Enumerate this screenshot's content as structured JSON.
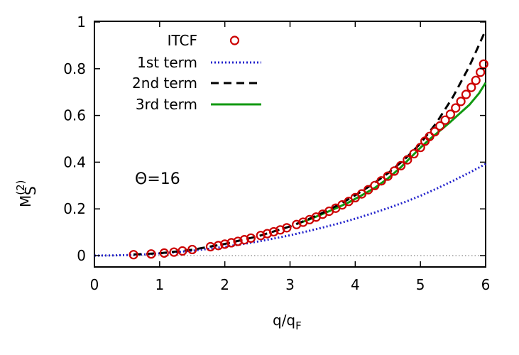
{
  "chart_data": {
    "type": "line",
    "title": "",
    "xlabel": {
      "base": "q/q",
      "sub": "F"
    },
    "ylabel": {
      "base": "M",
      "sup": "(2)",
      "sub": "S"
    },
    "xlim": [
      0,
      6
    ],
    "ylim": [
      -0.05,
      1.0
    ],
    "xticks": [
      0,
      1,
      2,
      3,
      4,
      5,
      6
    ],
    "xtick_labels": [
      "0",
      "1",
      "2",
      "3",
      "4",
      "5",
      "6"
    ],
    "yticks": [
      0,
      0.2,
      0.4,
      0.6,
      0.8,
      1
    ],
    "ytick_labels": [
      "0",
      "0.2",
      "0.4",
      "0.6",
      "0.8",
      "1"
    ],
    "grid": false,
    "legend_position": "top-left",
    "annotation": "Θ=16",
    "reference_line": {
      "y": 0,
      "style": "dotted",
      "color": "#888888"
    },
    "series": [
      {
        "name": "ITCF",
        "style": "circles",
        "color": "#cc0000",
        "x": [
          0.6,
          0.87,
          1.07,
          1.22,
          1.35,
          1.5,
          1.78,
          1.9,
          2.0,
          2.1,
          2.2,
          2.3,
          2.4,
          2.55,
          2.65,
          2.75,
          2.85,
          2.95,
          3.1,
          3.2,
          3.3,
          3.4,
          3.5,
          3.6,
          3.7,
          3.8,
          3.9,
          4.0,
          4.1,
          4.2,
          4.3,
          4.4,
          4.5,
          4.6,
          4.7,
          4.8,
          4.9,
          5.0,
          5.07,
          5.14,
          5.22,
          5.3,
          5.38,
          5.46,
          5.54,
          5.62,
          5.7,
          5.78,
          5.85,
          5.92,
          5.97
        ],
        "y": [
          0.004,
          0.007,
          0.011,
          0.015,
          0.02,
          0.026,
          0.038,
          0.043,
          0.049,
          0.055,
          0.061,
          0.068,
          0.075,
          0.086,
          0.094,
          0.102,
          0.11,
          0.119,
          0.133,
          0.143,
          0.154,
          0.165,
          0.177,
          0.19,
          0.203,
          0.217,
          0.232,
          0.248,
          0.264,
          0.282,
          0.3,
          0.32,
          0.34,
          0.362,
          0.385,
          0.41,
          0.436,
          0.463,
          0.49,
          0.51,
          0.53,
          0.555,
          0.58,
          0.605,
          0.632,
          0.66,
          0.69,
          0.72,
          0.75,
          0.785,
          0.82
        ]
      },
      {
        "name": "1st term",
        "style": "dotted",
        "color": "#2222cc",
        "x": [
          0,
          0.25,
          0.5,
          0.75,
          1.0,
          1.25,
          1.5,
          1.75,
          2.0,
          2.25,
          2.5,
          2.75,
          3.0,
          3.25,
          3.5,
          3.75,
          4.0,
          4.25,
          4.5,
          4.75,
          5.0,
          5.25,
          5.5,
          5.75,
          6.0
        ],
        "y": [
          0,
          0.0005,
          0.002,
          0.005,
          0.0095,
          0.015,
          0.021,
          0.029,
          0.038,
          0.048,
          0.06,
          0.073,
          0.087,
          0.103,
          0.12,
          0.138,
          0.158,
          0.18,
          0.203,
          0.228,
          0.256,
          0.287,
          0.32,
          0.355,
          0.392
        ]
      },
      {
        "name": "2nd term",
        "style": "dashed",
        "color": "#000000",
        "x": [
          0.6,
          1.0,
          1.5,
          2.0,
          2.5,
          3.0,
          3.25,
          3.5,
          3.75,
          4.0,
          4.25,
          4.5,
          4.75,
          5.0,
          5.25,
          5.5,
          5.75,
          6.0
        ],
        "y": [
          0.005,
          0.01,
          0.025,
          0.05,
          0.082,
          0.125,
          0.152,
          0.183,
          0.218,
          0.258,
          0.302,
          0.352,
          0.41,
          0.48,
          0.57,
          0.68,
          0.81,
          0.965
        ]
      },
      {
        "name": "3rd term",
        "style": "solid",
        "color": "#119911",
        "x": [
          3.1,
          3.3,
          3.5,
          3.7,
          3.9,
          4.1,
          4.3,
          4.5,
          4.7,
          4.85,
          5.0,
          5.15,
          5.3,
          5.45,
          5.6,
          5.75,
          5.9,
          6.0
        ],
        "y": [
          0.135,
          0.155,
          0.178,
          0.202,
          0.228,
          0.258,
          0.29,
          0.33,
          0.378,
          0.42,
          0.462,
          0.5,
          0.535,
          0.57,
          0.608,
          0.645,
          0.695,
          0.74
        ]
      }
    ]
  }
}
